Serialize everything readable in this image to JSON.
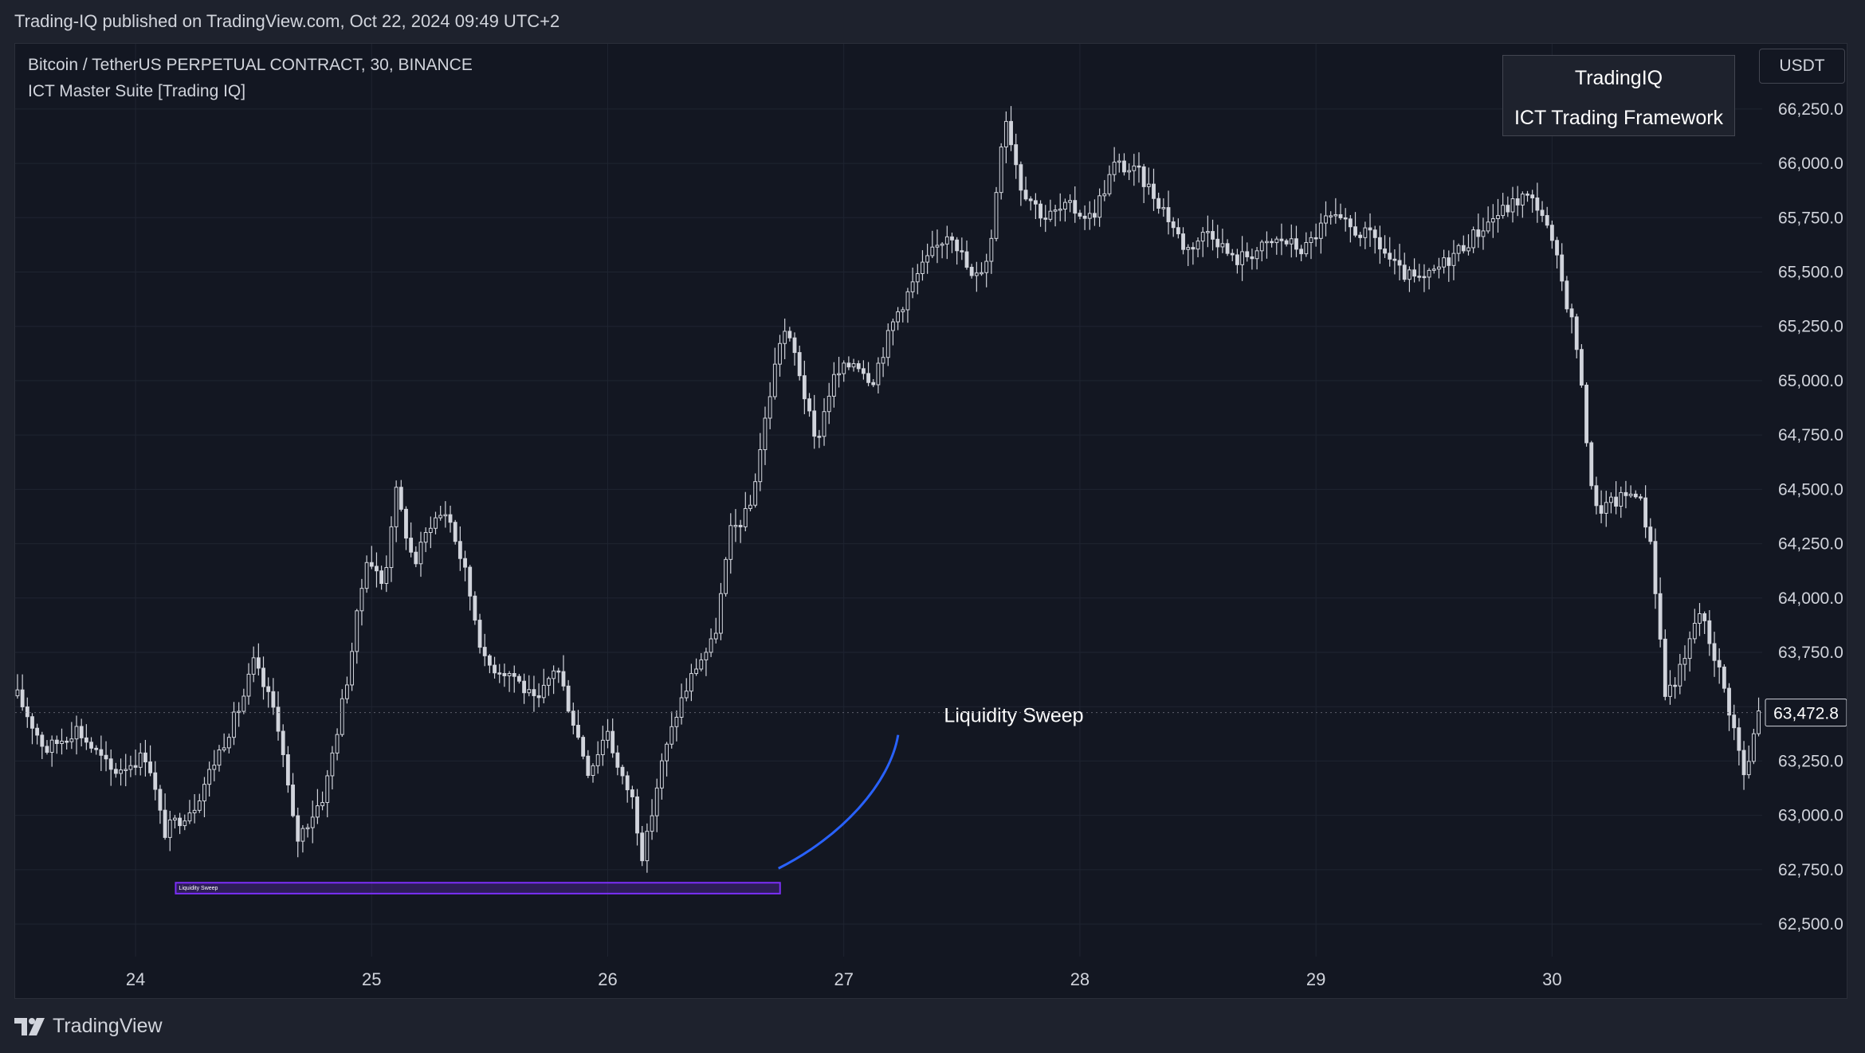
{
  "header": {
    "publish_line": "Trading-IQ published on TradingView.com, Oct 22, 2024 09:49 UTC+2"
  },
  "legend": {
    "symbol_line": "Bitcoin / TetherUS PERPETUAL CONTRACT, 30, BINANCE",
    "indicator_line": "ICT Master Suite [Trading IQ]"
  },
  "info_box": {
    "title": "TradingIQ",
    "subtitle": "ICT Trading Framework"
  },
  "currency_button": "USDT",
  "footer": {
    "brand": "TradingView",
    "brand_icon": "tradingview-logo-icon"
  },
  "colors": {
    "background": "#131722",
    "candle": "#d1d4dc",
    "grid": "#1f2431",
    "sweep_box": "#7b2ff7",
    "annotation_curve": "#2962ff",
    "text": "#d1d4dc"
  },
  "chart_data": {
    "type": "candlestick",
    "symbol": "BTCUSDT.P",
    "exchange": "BINANCE",
    "timeframe": "30",
    "y_ticks": [
      "62,500.0",
      "62,750.0",
      "63,000.0",
      "63,250.0",
      "63,500.0",
      "63,750.0",
      "64,000.0",
      "64,250.0",
      "64,500.0",
      "64,750.0",
      "65,000.0",
      "65,250.0",
      "65,500.0",
      "65,750.0",
      "66,000.0",
      "66,250.0"
    ],
    "y_tick_values": [
      62500,
      62750,
      63000,
      63250,
      63500,
      63750,
      64000,
      64250,
      64500,
      64750,
      65000,
      65250,
      65500,
      65750,
      66000,
      66250
    ],
    "ylim": [
      62350,
      66550
    ],
    "x_ticks": [
      {
        "label": "24",
        "day": 24
      },
      {
        "label": "25",
        "day": 25
      },
      {
        "label": "26",
        "day": 26
      },
      {
        "label": "27",
        "day": 27
      },
      {
        "label": "28",
        "day": 28
      },
      {
        "label": "29",
        "day": 29
      },
      {
        "label": "30",
        "day": 30
      }
    ],
    "xlim_days": [
      23.49,
      30.89
    ],
    "last_price": "63,472.8",
    "last_price_value": 63472.8,
    "anchors": [
      {
        "day": 23.5,
        "price": 63550
      },
      {
        "day": 23.62,
        "price": 63300
      },
      {
        "day": 23.75,
        "price": 63400
      },
      {
        "day": 23.9,
        "price": 63200
      },
      {
        "day": 24.05,
        "price": 63280
      },
      {
        "day": 24.12,
        "price": 62920
      },
      {
        "day": 24.25,
        "price": 63050
      },
      {
        "day": 24.45,
        "price": 63520
      },
      {
        "day": 24.5,
        "price": 63700
      },
      {
        "day": 24.6,
        "price": 63450
      },
      {
        "day": 24.68,
        "price": 62880
      },
      {
        "day": 24.8,
        "price": 63100
      },
      {
        "day": 24.9,
        "price": 63650
      },
      {
        "day": 24.98,
        "price": 64200
      },
      {
        "day": 25.05,
        "price": 64050
      },
      {
        "day": 25.1,
        "price": 64500
      },
      {
        "day": 25.18,
        "price": 64150
      },
      {
        "day": 25.25,
        "price": 64350
      },
      {
        "day": 25.32,
        "price": 64400
      },
      {
        "day": 25.4,
        "price": 64100
      },
      {
        "day": 25.48,
        "price": 63700
      },
      {
        "day": 25.6,
        "price": 63650
      },
      {
        "day": 25.7,
        "price": 63500
      },
      {
        "day": 25.78,
        "price": 63700
      },
      {
        "day": 25.85,
        "price": 63450
      },
      {
        "day": 25.92,
        "price": 63200
      },
      {
        "day": 26.0,
        "price": 63400
      },
      {
        "day": 26.05,
        "price": 63180
      },
      {
        "day": 26.1,
        "price": 63100
      },
      {
        "day": 26.15,
        "price": 62800
      },
      {
        "day": 26.22,
        "price": 63200
      },
      {
        "day": 26.3,
        "price": 63500
      },
      {
        "day": 26.38,
        "price": 63700
      },
      {
        "day": 26.45,
        "price": 63800
      },
      {
        "day": 26.52,
        "price": 64300
      },
      {
        "day": 26.6,
        "price": 64400
      },
      {
        "day": 26.68,
        "price": 64900
      },
      {
        "day": 26.74,
        "price": 65250
      },
      {
        "day": 26.8,
        "price": 65100
      },
      {
        "day": 26.88,
        "price": 64700
      },
      {
        "day": 26.95,
        "price": 65000
      },
      {
        "day": 27.05,
        "price": 65100
      },
      {
        "day": 27.12,
        "price": 65000
      },
      {
        "day": 27.22,
        "price": 65300
      },
      {
        "day": 27.32,
        "price": 65500
      },
      {
        "day": 27.45,
        "price": 65700
      },
      {
        "day": 27.55,
        "price": 65450
      },
      {
        "day": 27.62,
        "price": 65600
      },
      {
        "day": 27.68,
        "price": 66250
      },
      {
        "day": 27.75,
        "price": 65900
      },
      {
        "day": 27.85,
        "price": 65750
      },
      {
        "day": 27.95,
        "price": 65800
      },
      {
        "day": 28.05,
        "price": 65750
      },
      {
        "day": 28.15,
        "price": 66000
      },
      {
        "day": 28.25,
        "price": 65950
      },
      {
        "day": 28.35,
        "price": 65800
      },
      {
        "day": 28.45,
        "price": 65600
      },
      {
        "day": 28.55,
        "price": 65700
      },
      {
        "day": 28.65,
        "price": 65550
      },
      {
        "day": 28.75,
        "price": 65600
      },
      {
        "day": 28.85,
        "price": 65650
      },
      {
        "day": 28.95,
        "price": 65600
      },
      {
        "day": 29.05,
        "price": 65750
      },
      {
        "day": 29.15,
        "price": 65700
      },
      {
        "day": 29.25,
        "price": 65650
      },
      {
        "day": 29.35,
        "price": 65500
      },
      {
        "day": 29.45,
        "price": 65450
      },
      {
        "day": 29.55,
        "price": 65550
      },
      {
        "day": 29.65,
        "price": 65650
      },
      {
        "day": 29.75,
        "price": 65750
      },
      {
        "day": 29.88,
        "price": 65850
      },
      {
        "day": 29.95,
        "price": 65800
      },
      {
        "day": 30.02,
        "price": 65550
      },
      {
        "day": 30.1,
        "price": 65200
      },
      {
        "day": 30.18,
        "price": 64400
      },
      {
        "day": 30.28,
        "price": 64450
      },
      {
        "day": 30.36,
        "price": 64500
      },
      {
        "day": 30.42,
        "price": 64250
      },
      {
        "day": 30.48,
        "price": 63550
      },
      {
        "day": 30.56,
        "price": 63700
      },
      {
        "day": 30.62,
        "price": 63950
      },
      {
        "day": 30.7,
        "price": 63700
      },
      {
        "day": 30.76,
        "price": 63450
      },
      {
        "day": 30.82,
        "price": 63150
      },
      {
        "day": 30.87,
        "price": 63470
      }
    ],
    "annotations": [
      {
        "type": "zone",
        "label": "Liquidity Sweep",
        "day_start": 24.17,
        "day_end": 26.73,
        "price_low": 62640,
        "price_high": 62690
      },
      {
        "type": "text",
        "label": "Liquidity Sweep",
        "day": 27.72,
        "price": 63430
      }
    ]
  }
}
